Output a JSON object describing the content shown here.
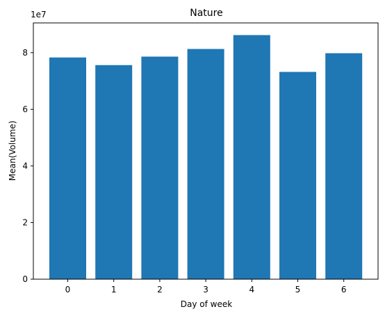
{
  "chart_data": {
    "type": "bar",
    "title": "Nature",
    "xlabel": "Day of week",
    "ylabel": "Mean(Volume)",
    "y_offset_label": "1e7",
    "categories": [
      "0",
      "1",
      "2",
      "3",
      "4",
      "5",
      "6"
    ],
    "values": [
      78300000,
      75600000,
      78600000,
      81300000,
      86200000,
      73200000,
      79800000
    ],
    "ylim": [
      0,
      90500000
    ],
    "yticks": [
      0,
      20000000,
      40000000,
      60000000,
      80000000
    ],
    "ytick_labels": [
      "0",
      "2",
      "4",
      "6",
      "8"
    ],
    "bar_color": "#1f77b4",
    "grid": false,
    "legend": "none"
  }
}
